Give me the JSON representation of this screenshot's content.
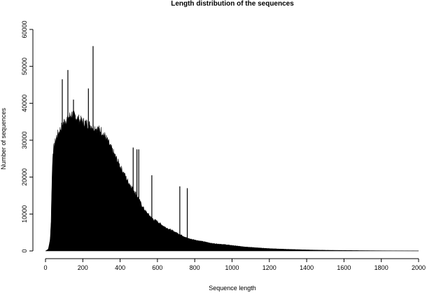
{
  "chart_data": {
    "type": "bar",
    "title": "Length distribution of the sequences",
    "xlabel": "Sequence length",
    "ylabel": "Number of sequences",
    "xlim": [
      0,
      2000
    ],
    "ylim": [
      0,
      60000
    ],
    "x_ticks": [
      "0",
      "200",
      "400",
      "600",
      "800",
      "1000",
      "1200",
      "1400",
      "1600",
      "1800",
      "2000"
    ],
    "y_ticks": [
      "0",
      "10000",
      "20000",
      "30000",
      "40000",
      "50000",
      "60000"
    ],
    "grid": false,
    "legend": "none",
    "color": "#000000",
    "envelope": {
      "x": [
        0,
        15,
        25,
        30,
        35,
        40,
        50,
        60,
        70,
        80,
        90,
        100,
        120,
        140,
        160,
        180,
        200,
        220,
        240,
        260,
        280,
        300,
        320,
        340,
        360,
        380,
        400,
        420,
        440,
        460,
        480,
        500,
        520,
        540,
        560,
        580,
        600,
        620,
        640,
        660,
        680,
        700,
        720,
        740,
        760,
        780,
        800,
        820,
        840,
        860,
        880,
        900,
        950,
        1000,
        1050,
        1100,
        1150,
        1200,
        1300,
        1400,
        1500,
        1600,
        1700,
        1800,
        1900,
        2000
      ],
      "y": [
        0,
        500,
        3000,
        8000,
        20000,
        27000,
        29000,
        31000,
        32000,
        33000,
        34000,
        35000,
        36000,
        37000,
        36500,
        35500,
        35000,
        34500,
        34000,
        33500,
        33000,
        32500,
        31000,
        29000,
        27000,
        25000,
        23000,
        21000,
        19000,
        17500,
        16000,
        14000,
        12000,
        10500,
        9500,
        8500,
        8000,
        7200,
        6500,
        6000,
        5500,
        5000,
        4500,
        4000,
        3500,
        3200,
        3000,
        2800,
        2600,
        2400,
        2200,
        2000,
        1800,
        1500,
        1200,
        1000,
        800,
        650,
        450,
        300,
        200,
        150,
        100,
        60,
        40,
        20
      ]
    },
    "spikes": [
      {
        "x": 90,
        "y": 46500
      },
      {
        "x": 120,
        "y": 49000
      },
      {
        "x": 150,
        "y": 41000
      },
      {
        "x": 230,
        "y": 44000
      },
      {
        "x": 255,
        "y": 55500
      },
      {
        "x": 470,
        "y": 28000
      },
      {
        "x": 490,
        "y": 27500
      },
      {
        "x": 500,
        "y": 27500
      },
      {
        "x": 570,
        "y": 20500
      },
      {
        "x": 720,
        "y": 17500
      },
      {
        "x": 760,
        "y": 17000
      }
    ]
  }
}
